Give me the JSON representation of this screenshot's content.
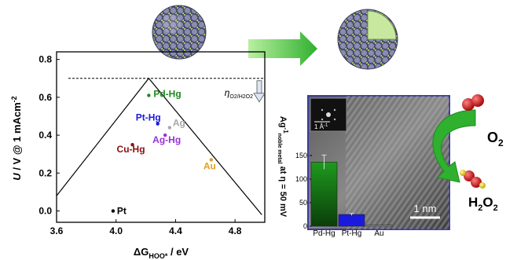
{
  "colors": {
    "pd_hg": "#1f8a1f",
    "pt_hg": "#1a1adf",
    "ag": "#a8a8a8",
    "ag_hg": "#9b2fd8",
    "cu_hg": "#8b1010",
    "au": "#e0a020",
    "pt": "#000000",
    "arrow_green": "#2fb02f",
    "panel_border": "#3a3aa0"
  },
  "chart_data": [
    {
      "type": "scatter",
      "title": "",
      "xlabel": "ΔG",
      "xlabel_sub": "HOO*",
      "xlabel_unit": " / eV",
      "ylabel": "U / V @ 1 mAcm",
      "ylabel_sup": "-2",
      "xlim": [
        3.6,
        5.0
      ],
      "ylim": [
        -0.06,
        0.84
      ],
      "xticks": [
        "3.6",
        "4.0",
        "4.4",
        "4.8"
      ],
      "yticks": [
        "0.0",
        "0.2",
        "0.4",
        "0.6",
        "0.8"
      ],
      "volcano": {
        "apex_x": 4.22,
        "apex_y": 0.7,
        "left": [
          3.6,
          0.08
        ],
        "right": [
          4.98,
          -0.02
        ]
      },
      "equilibrium_line": 0.7,
      "eta_label": "η",
      "eta_sub": "O2/H2O2",
      "points": [
        {
          "label": "Pd-Hg",
          "x": 4.22,
          "y": 0.61,
          "color_key": "pd_hg"
        },
        {
          "label": "Pt-Hg",
          "x": 4.28,
          "y": 0.46,
          "color_key": "pt_hg"
        },
        {
          "label": "Ag",
          "x": 4.36,
          "y": 0.44,
          "color_key": "ag"
        },
        {
          "label": "Ag-Hg",
          "x": 4.33,
          "y": 0.4,
          "color_key": "ag_hg"
        },
        {
          "label": "Cu-Hg",
          "x": 4.11,
          "y": 0.35,
          "color_key": "cu_hg"
        },
        {
          "label": "Au",
          "x": 4.64,
          "y": 0.27,
          "color_key": "au"
        },
        {
          "label": "Pt",
          "x": 3.98,
          "y": 0.0,
          "color_key": "pt"
        }
      ]
    },
    {
      "type": "bar",
      "title": "",
      "ylabel": "Ag",
      "ylabel_sup": "-1",
      "ylabel_sub": "noble metal",
      "ylabel_tail": " at η = 50 mV",
      "ylim": [
        0,
        175
      ],
      "yticks": [
        "0",
        "50",
        "100",
        "150"
      ],
      "categories": [
        "Pd-Hg",
        "Pt-Hg",
        "Au"
      ],
      "values": [
        136,
        25,
        2
      ],
      "error": [
        15,
        2,
        0
      ]
    }
  ],
  "insets": {
    "fft_scale": "1 Å",
    "fft_scale_sup": "-1",
    "tem_scale": "1 nm"
  },
  "products": {
    "o2": "O",
    "o2_sub": "2",
    "h2o2_a": "H",
    "h2o2_b": "2",
    "h2o2_c": "O",
    "h2o2_d": "2"
  }
}
